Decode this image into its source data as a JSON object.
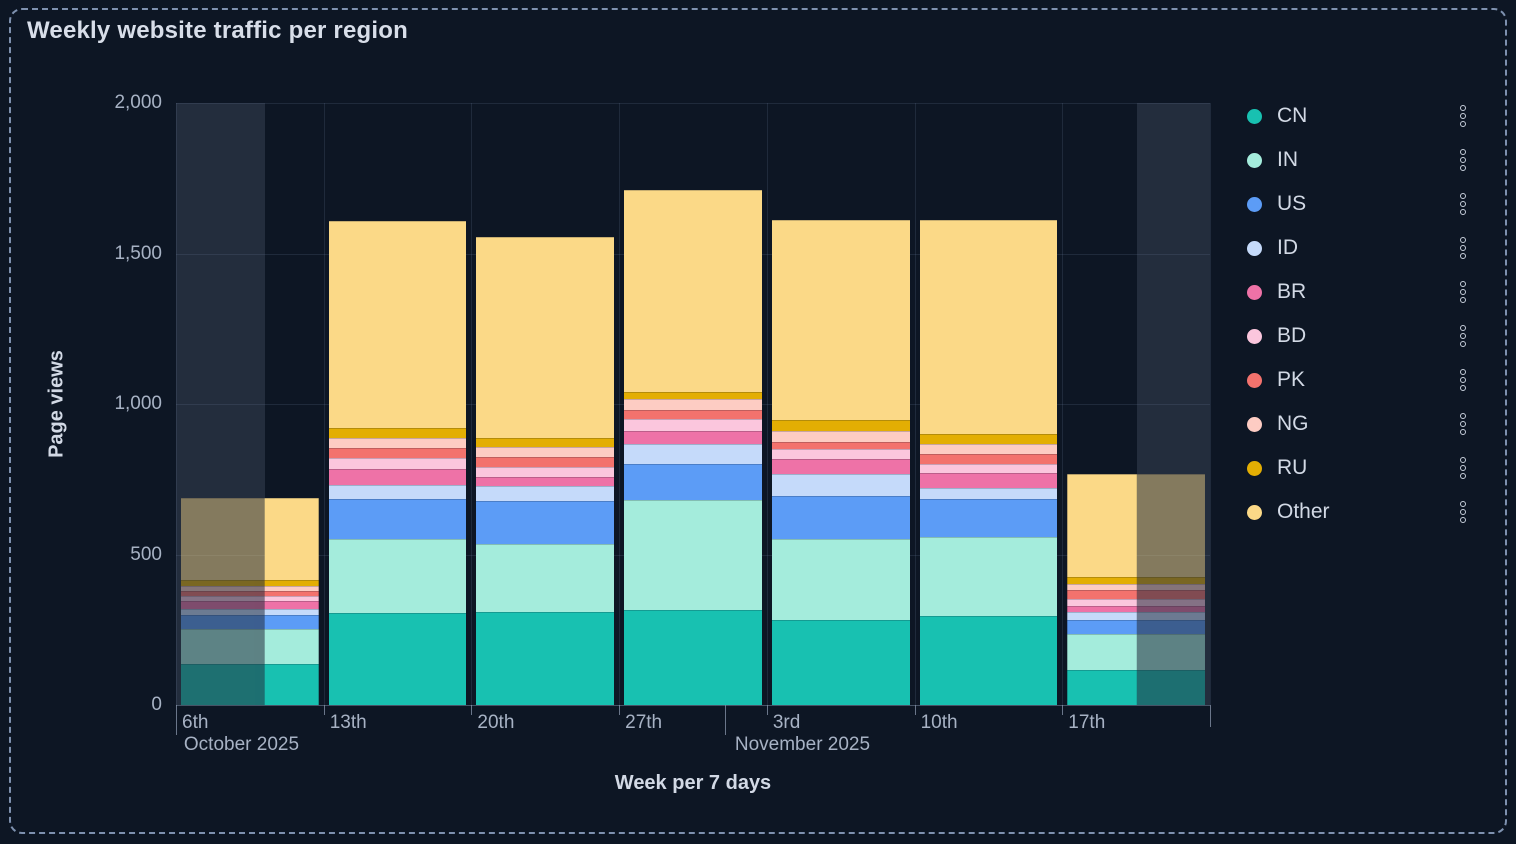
{
  "panel": {
    "title": "Weekly website traffic per region",
    "background": "#0D1624",
    "border_color": "#7E91AF"
  },
  "y_axis": {
    "title": "Page views",
    "ticks": [
      {
        "value": 0,
        "label": "0"
      },
      {
        "value": 500,
        "label": "500"
      },
      {
        "value": 1000,
        "label": "1,000"
      },
      {
        "value": 1500,
        "label": "1,500"
      },
      {
        "value": 2000,
        "label": "2,000"
      }
    ]
  },
  "x_axis": {
    "title": "Week per 7 days",
    "month_tick_fracs": [
      0,
      3.714
    ],
    "month_labels": [
      {
        "text": "October 2025",
        "col_frac": 0.04
      },
      {
        "text": "November 2025",
        "col_frac": 3.77
      }
    ]
  },
  "legend": {
    "position": "right",
    "menu_icon": "kebab-vertical"
  },
  "chart_data": {
    "type": "bar",
    "stacked": true,
    "title": "Weekly website traffic per region",
    "xlabel": "Week per 7 days",
    "ylabel": "Page views",
    "ylim": [
      0,
      2000
    ],
    "grid": true,
    "legend_position": "right",
    "categories": [
      "6th",
      "13th",
      "20th",
      "27th",
      "3rd",
      "10th",
      "17th"
    ],
    "series": [
      {
        "name": "CN",
        "color": "#18C1B1",
        "values": [
          135,
          305,
          308,
          317,
          284,
          295,
          116
        ]
      },
      {
        "name": "IN",
        "color": "#A4ECDC",
        "values": [
          116,
          246,
          227,
          365,
          266,
          262,
          119
        ]
      },
      {
        "name": "US",
        "color": "#5C9CF6",
        "values": [
          47,
          133,
          144,
          119,
          144,
          129,
          47
        ]
      },
      {
        "name": "ID",
        "color": "#C5DAFA",
        "values": [
          20,
          47,
          47,
          67,
          75,
          36,
          26
        ]
      },
      {
        "name": "BR",
        "color": "#EE72A7",
        "values": [
          26,
          53,
          33,
          44,
          47,
          50,
          22
        ]
      },
      {
        "name": "BD",
        "color": "#FBC6DD",
        "values": [
          17,
          37,
          33,
          38,
          33,
          30,
          22
        ]
      },
      {
        "name": "PK",
        "color": "#F3726D",
        "values": [
          17,
          33,
          33,
          29,
          26,
          33,
          30
        ]
      },
      {
        "name": "NG",
        "color": "#FDCCC3",
        "values": [
          17,
          33,
          33,
          38,
          35,
          31,
          20
        ]
      },
      {
        "name": "RU",
        "color": "#E3AE03",
        "values": [
          19,
          32,
          28,
          22,
          36,
          33,
          22
        ]
      },
      {
        "name": "Other",
        "color": "#FBD987",
        "values": [
          275,
          690,
          668,
          672,
          666,
          713,
          343
        ]
      }
    ],
    "dim_overlays": [
      {
        "col": 0,
        "from": 0,
        "to": 0.6
      },
      {
        "col": 6,
        "from": 0.505,
        "to": 1
      }
    ]
  }
}
